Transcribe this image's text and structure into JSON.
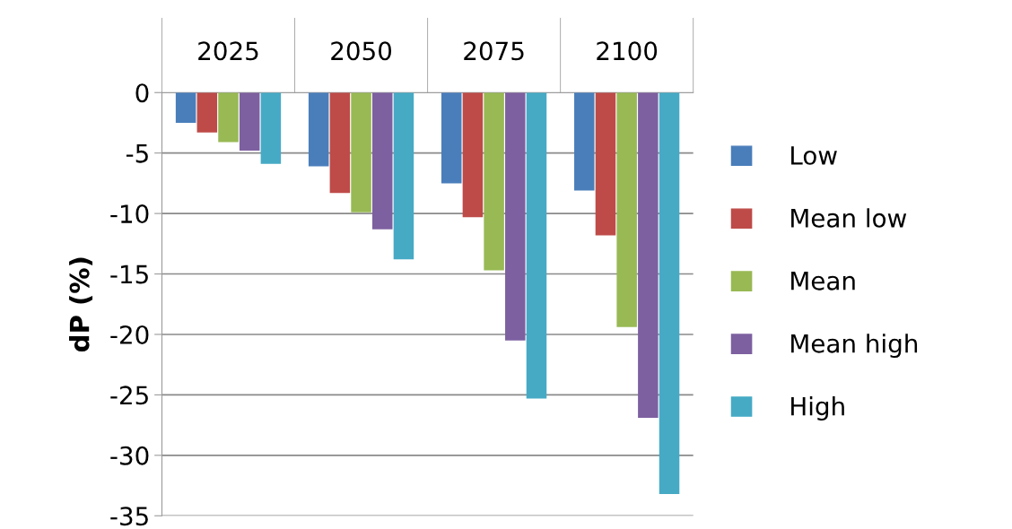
{
  "chart_data": {
    "type": "bar",
    "ylabel": "dP (%)",
    "categories": [
      "2025",
      "2050",
      "2075",
      "2100"
    ],
    "series": [
      {
        "name": "Low",
        "color": "#4a7ebb",
        "values": [
          -2.5,
          -6.1,
          -7.5,
          -8.1
        ]
      },
      {
        "name": "Mean low",
        "color": "#be4b48",
        "values": [
          -3.3,
          -8.3,
          -10.3,
          -11.8
        ]
      },
      {
        "name": "Mean",
        "color": "#98b954",
        "values": [
          -4.1,
          -9.9,
          -14.7,
          -19.4
        ]
      },
      {
        "name": "Mean high",
        "color": "#7d60a0",
        "values": [
          -4.8,
          -11.3,
          -20.5,
          -26.9
        ]
      },
      {
        "name": "High",
        "color": "#46aac5",
        "values": [
          -5.9,
          -13.8,
          -25.3,
          -33.2
        ]
      }
    ],
    "ylim": [
      -35,
      0
    ],
    "yticks": [
      0,
      -5,
      -10,
      -15,
      -20,
      -25,
      -30,
      -35
    ],
    "grid": "y",
    "legend": "right"
  }
}
